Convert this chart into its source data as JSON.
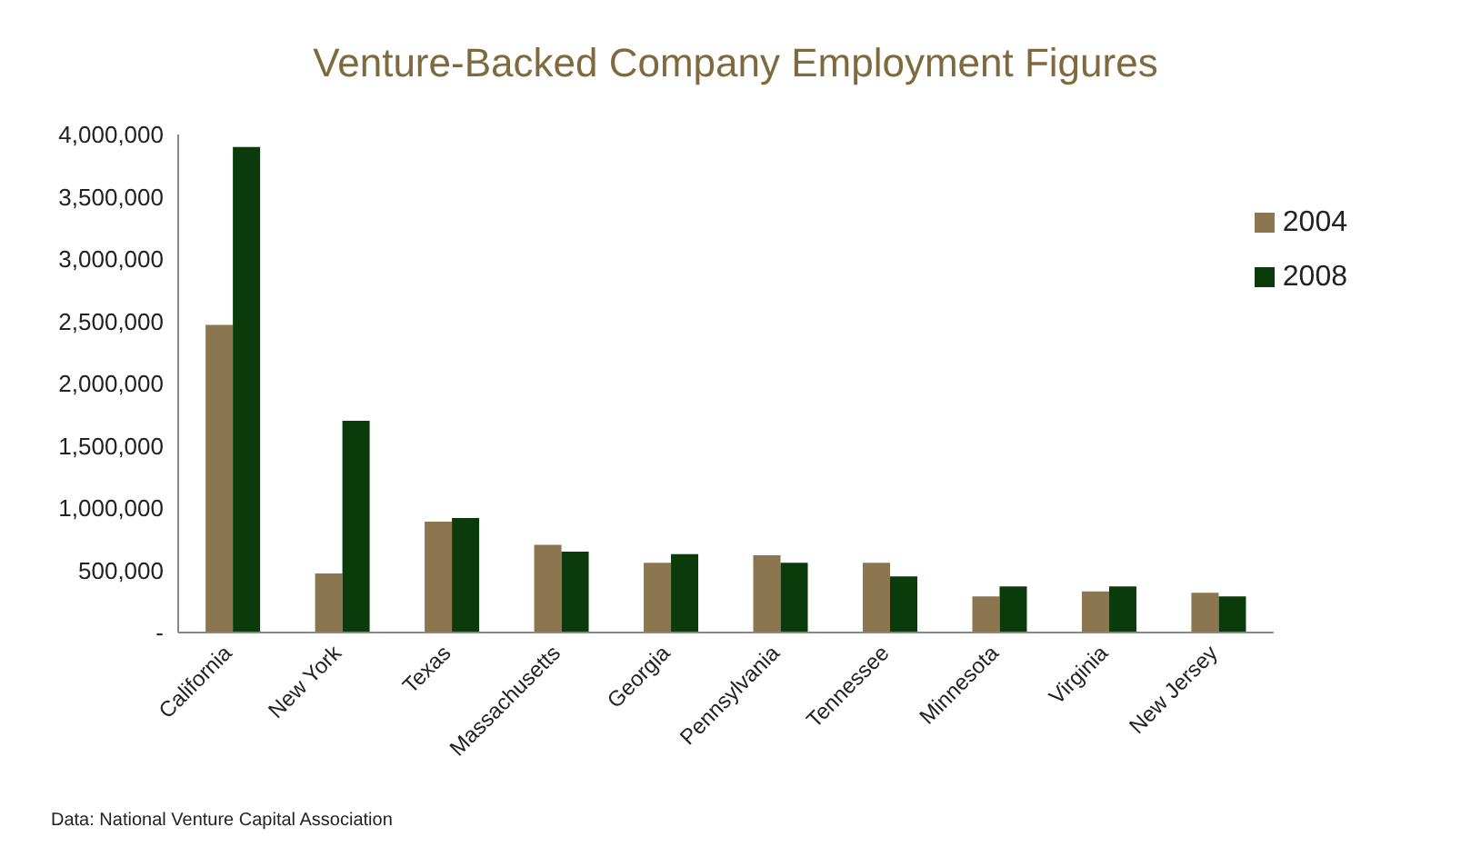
{
  "chart_data": {
    "type": "bar",
    "title": "Venture-Backed Company Employment Figures",
    "categories": [
      "California",
      "New York",
      "Texas",
      "Massachusetts",
      "Georgia",
      "Pennsylvania",
      "Tennessee",
      "Minnesota",
      "Virginia",
      "New Jersey"
    ],
    "series": [
      {
        "name": "2004",
        "color": "#8b7650",
        "values": [
          2470000,
          475000,
          890000,
          705000,
          560000,
          620000,
          560000,
          290000,
          330000,
          320000
        ]
      },
      {
        "name": "2008",
        "color": "#0b3a0b",
        "values": [
          3900000,
          1700000,
          920000,
          650000,
          630000,
          560000,
          450000,
          370000,
          370000,
          290000
        ]
      }
    ],
    "ylim": [
      0,
      4000000
    ],
    "yticks": [
      {
        "value": 0,
        "label": "-"
      },
      {
        "value": 500000,
        "label": "500,000"
      },
      {
        "value": 1000000,
        "label": "1,000,000"
      },
      {
        "value": 1500000,
        "label": "1,500,000"
      },
      {
        "value": 2000000,
        "label": "2,000,000"
      },
      {
        "value": 2500000,
        "label": "2,500,000"
      },
      {
        "value": 3000000,
        "label": "3,000,000"
      },
      {
        "value": 3500000,
        "label": "3,500,000"
      },
      {
        "value": 4000000,
        "label": "4,000,000"
      }
    ],
    "grid": false,
    "legend": "top right",
    "annotations": [
      "Data: National Venture Capital Association"
    ]
  }
}
